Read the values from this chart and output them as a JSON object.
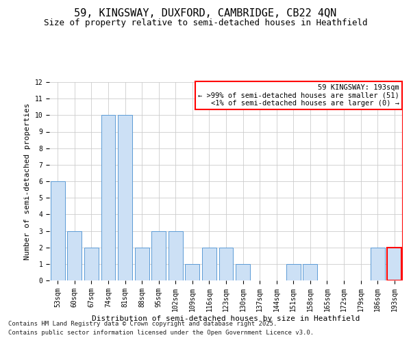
{
  "title": "59, KINGSWAY, DUXFORD, CAMBRIDGE, CB22 4QN",
  "subtitle": "Size of property relative to semi-detached houses in Heathfield",
  "xlabel": "Distribution of semi-detached houses by size in Heathfield",
  "ylabel": "Number of semi-detached properties",
  "categories": [
    "53sqm",
    "60sqm",
    "67sqm",
    "74sqm",
    "81sqm",
    "88sqm",
    "95sqm",
    "102sqm",
    "109sqm",
    "116sqm",
    "123sqm",
    "130sqm",
    "137sqm",
    "144sqm",
    "151sqm",
    "158sqm",
    "165sqm",
    "172sqm",
    "179sqm",
    "186sqm",
    "193sqm"
  ],
  "values": [
    6,
    3,
    2,
    10,
    10,
    2,
    3,
    3,
    1,
    2,
    2,
    1,
    0,
    0,
    1,
    1,
    0,
    0,
    0,
    2,
    2
  ],
  "bar_color": "#cce0f5",
  "bar_edge_color": "#5b9bd5",
  "highlight_index": 20,
  "highlight_bar_edge_color": "#ff0000",
  "ylim": [
    0,
    12
  ],
  "yticks": [
    0,
    1,
    2,
    3,
    4,
    5,
    6,
    7,
    8,
    9,
    10,
    11,
    12
  ],
  "grid_color": "#cccccc",
  "background_color": "#ffffff",
  "legend_title": "59 KINGSWAY: 193sqm",
  "legend_line1": "← >99% of semi-detached houses are smaller (51)",
  "legend_line2": "<1% of semi-detached houses are larger (0) →",
  "footnote1": "Contains HM Land Registry data © Crown copyright and database right 2025.",
  "footnote2": "Contains public sector information licensed under the Open Government Licence v3.0.",
  "title_fontsize": 11,
  "subtitle_fontsize": 9,
  "axis_label_fontsize": 8,
  "tick_fontsize": 7,
  "legend_fontsize": 7.5,
  "footnote_fontsize": 6.5
}
